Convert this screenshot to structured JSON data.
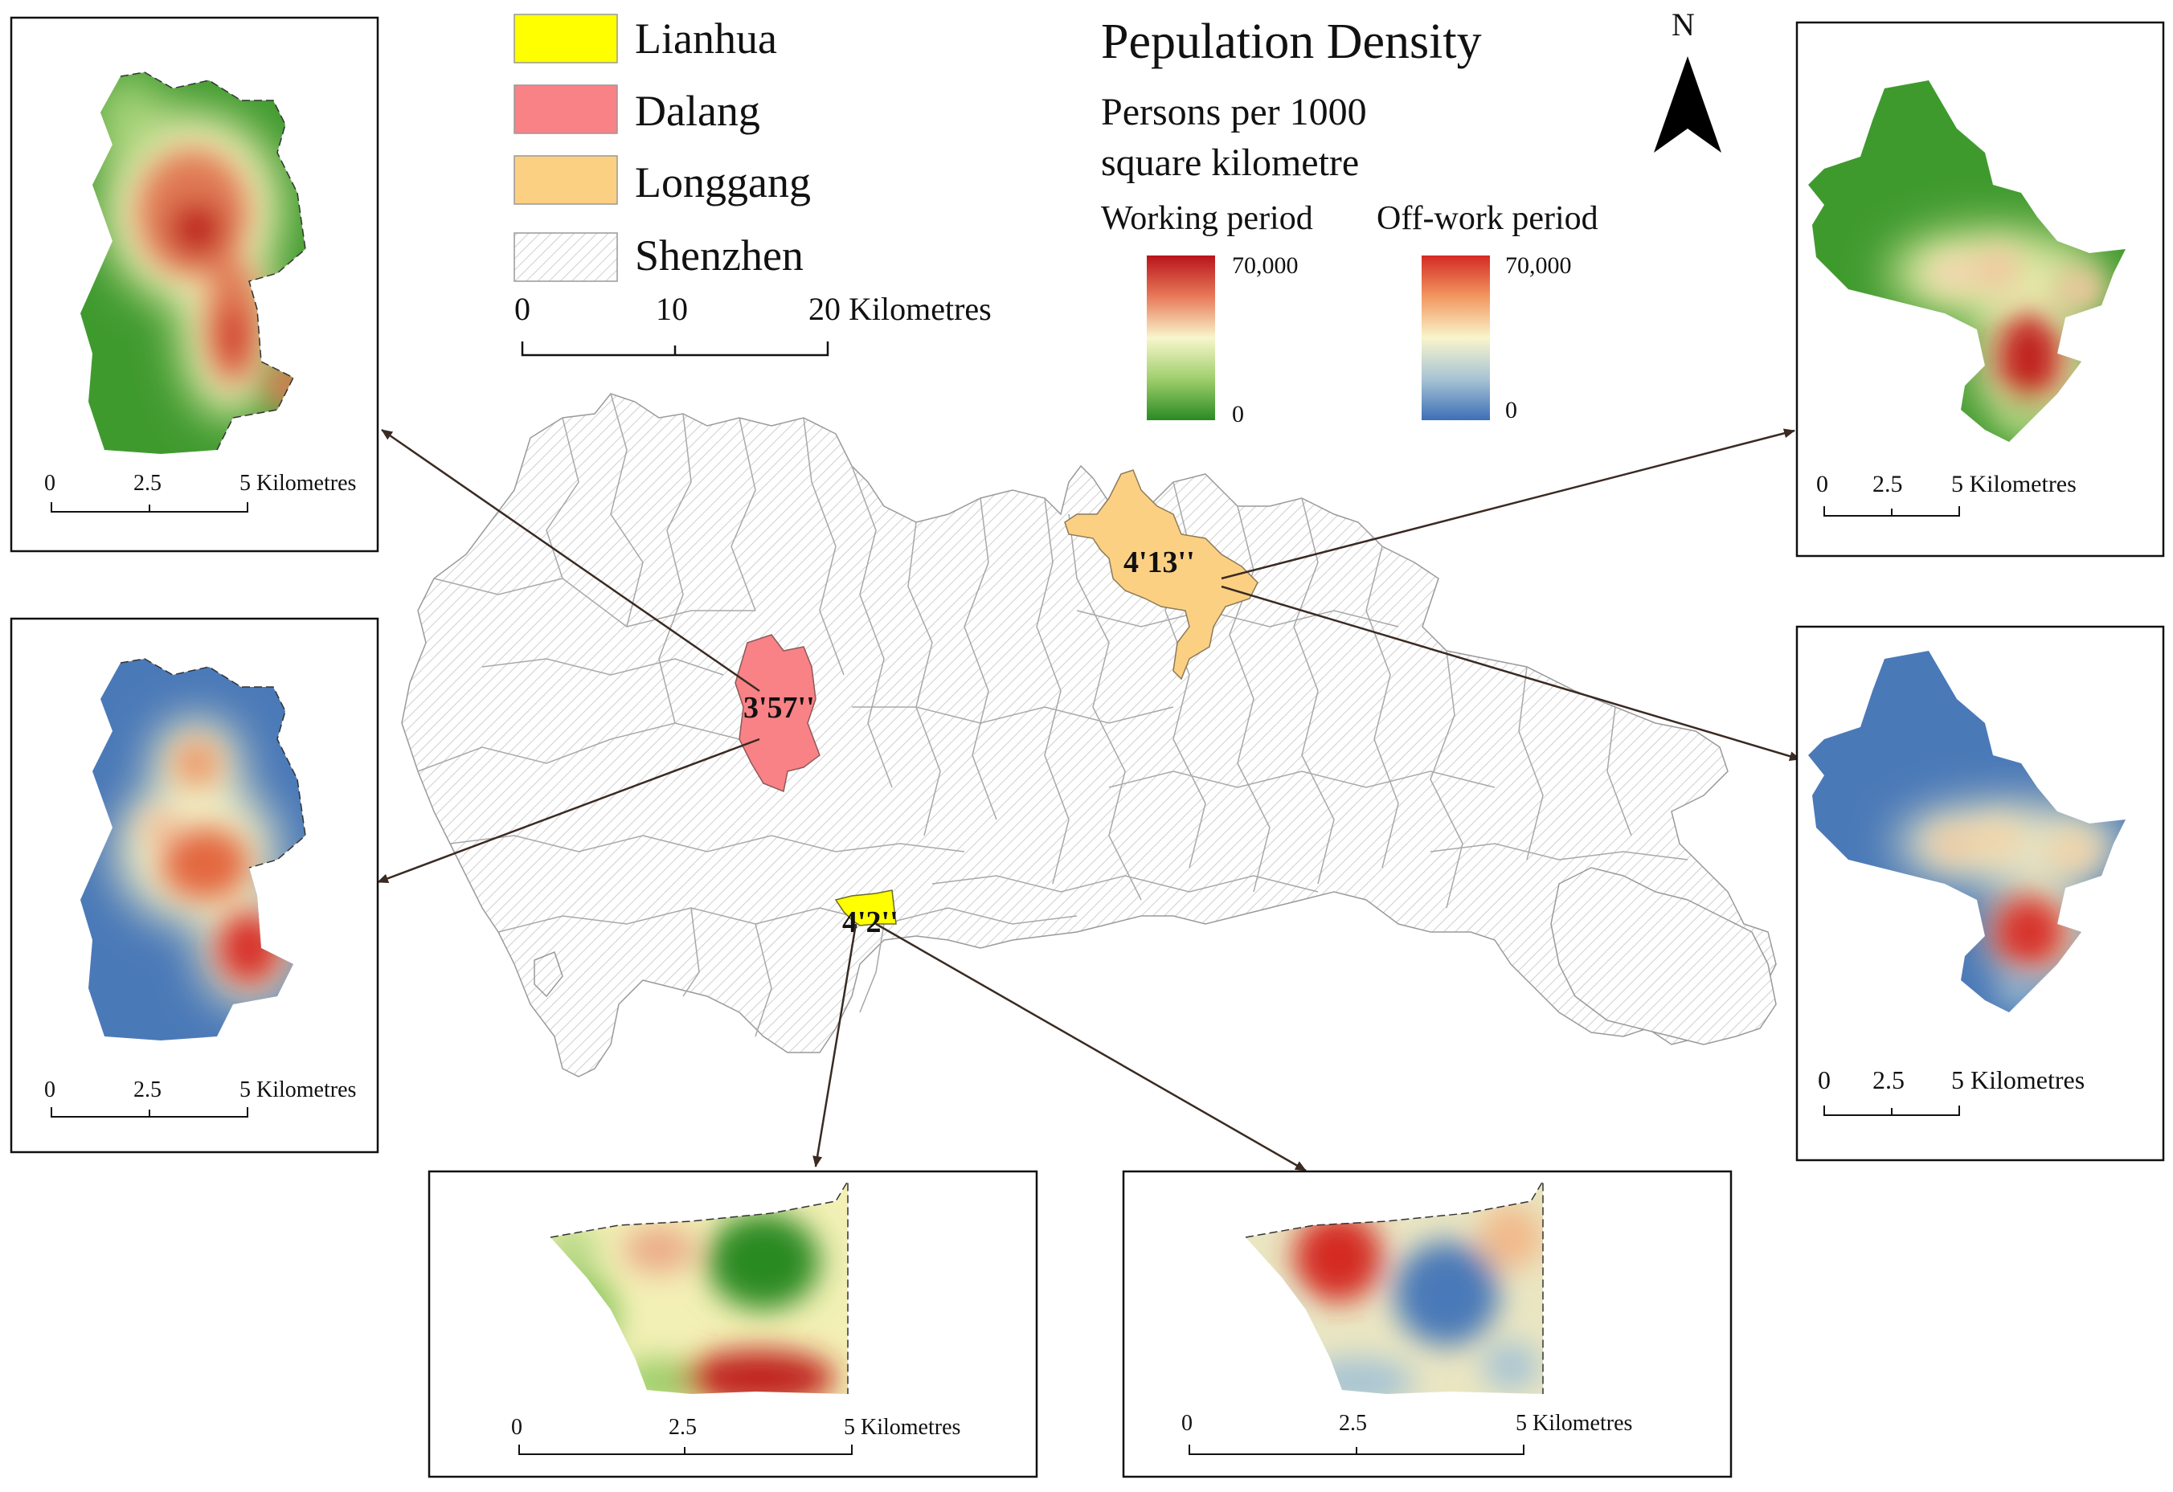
{
  "legend": {
    "items": [
      {
        "label": "Lianhua",
        "color": "#ffff00"
      },
      {
        "label": "Dalang",
        "color": "#f98286"
      },
      {
        "label": "Longgang",
        "color": "#fcd083"
      },
      {
        "label": "Shenzhen",
        "color": "hatched"
      }
    ],
    "scale": {
      "ticks": [
        "0",
        "10",
        "20 Kilometres"
      ]
    }
  },
  "density_legend": {
    "title": "Pepulation Density",
    "subtitle_line1": "Persons per 1000",
    "subtitle_line2": "square kilometre",
    "working": {
      "label": "Working period",
      "max": "70,000",
      "min": "0"
    },
    "offwork": {
      "label": "Off-work period",
      "max": "70,000",
      "min": "0"
    }
  },
  "north_arrow": {
    "label": "N"
  },
  "districts": {
    "dalang": {
      "label": "3'57''"
    },
    "longgang": {
      "label": "4'13''"
    },
    "lianhua": {
      "label": "4'2''"
    }
  },
  "insets": {
    "dalang_work": {
      "scale": [
        "0",
        "2.5",
        "5 Kilometres"
      ]
    },
    "dalang_off": {
      "scale": [
        "0",
        "2.5",
        "5 Kilometres"
      ]
    },
    "longgang_work": {
      "scale": [
        "0",
        "2.5",
        "5 Kilometres"
      ]
    },
    "longgang_off": {
      "scale": [
        "0",
        "2.5",
        "5 Kilometres"
      ]
    },
    "lianhua_work": {
      "scale": [
        "0",
        "2.5",
        "5 Kilometres"
      ]
    },
    "lianhua_off": {
      "scale": [
        "0",
        "2.5",
        "5 Kilometres"
      ]
    }
  },
  "colors": {
    "work_high": "#c8201e",
    "work_mid": "#f7f5c0",
    "work_low": "#3c9a2c",
    "off_high": "#d7302b",
    "off_mid": "#f6f1c4",
    "off_low": "#4a79b8",
    "arrow": "#3a2a22"
  }
}
